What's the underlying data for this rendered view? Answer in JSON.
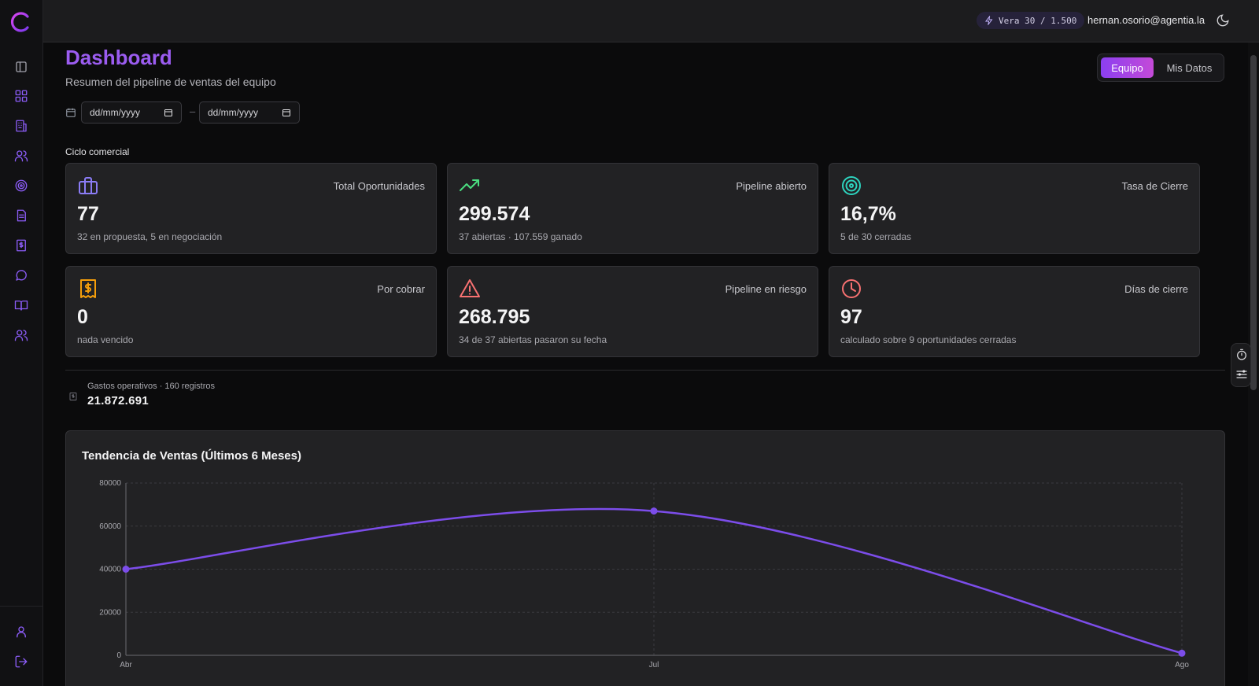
{
  "topbar": {
    "vera_chip": "Vera 30 / 1.500",
    "user_email": "hernan.osorio@agentia.la"
  },
  "sidebar": {
    "items": [
      {
        "icon": "sidebar-toggle-icon"
      },
      {
        "icon": "dashboard-icon"
      },
      {
        "icon": "building-icon"
      },
      {
        "icon": "users-icon"
      },
      {
        "icon": "target-icon"
      },
      {
        "icon": "document-icon"
      },
      {
        "icon": "invoice-icon"
      },
      {
        "icon": "chat-icon"
      },
      {
        "icon": "book-icon"
      },
      {
        "icon": "team-icon"
      }
    ],
    "bottom": [
      {
        "icon": "profile-icon"
      },
      {
        "icon": "logout-icon"
      }
    ]
  },
  "page": {
    "title": "Dashboard",
    "subtitle": "Resumen del pipeline de ventas del equipo",
    "view_toggle": {
      "active": "Equipo",
      "inactive": "Mis Datos"
    },
    "date_from_placeholder": "dd/mm/yyyy",
    "date_to_placeholder": "dd/mm/yyyy",
    "date_separator": "–",
    "section_label": "Ciclo comercial"
  },
  "cards": [
    {
      "label": "Total Oportunidades",
      "value": "77",
      "sub": "32 en propuesta, 5 en negociación",
      "icon": "briefcase-icon",
      "color": "#8b7cf6"
    },
    {
      "label": "Pipeline abierto",
      "value": "299.574",
      "sub": "37 abiertas · 107.559 ganado",
      "icon": "trending-up-icon",
      "color": "#4ade80"
    },
    {
      "label": "Tasa de Cierre",
      "value": "16,7%",
      "sub": "5 de 30 cerradas",
      "icon": "target-icon",
      "color": "#2dd4bf"
    },
    {
      "label": "Por cobrar",
      "value": "0",
      "sub": "nada vencido",
      "icon": "receipt-icon",
      "color": "#f59e0b"
    },
    {
      "label": "Pipeline en riesgo",
      "value": "268.795",
      "sub": "34 de 37 abiertas pasaron su fecha",
      "icon": "warning-icon",
      "color": "#f87171"
    },
    {
      "label": "Días de cierre",
      "value": "97",
      "sub": "calculado sobre 9 oportunidades cerradas",
      "icon": "clock-icon",
      "color": "#f87171"
    }
  ],
  "gastos": {
    "label": "Gastos operativos · 160 registros",
    "value": "21.872.691"
  },
  "chart_data": {
    "type": "line",
    "title": "Tendencia de Ventas (Últimos 6 Meses)",
    "categories": [
      "Abr",
      "Jul",
      "Ago"
    ],
    "series": [
      {
        "values": [
          40000,
          67000,
          1000
        ],
        "color": "#7c4dea"
      }
    ],
    "yticks": [
      0,
      20000,
      40000,
      60000,
      80000
    ],
    "ylim": [
      0,
      80000
    ],
    "grid": true
  }
}
